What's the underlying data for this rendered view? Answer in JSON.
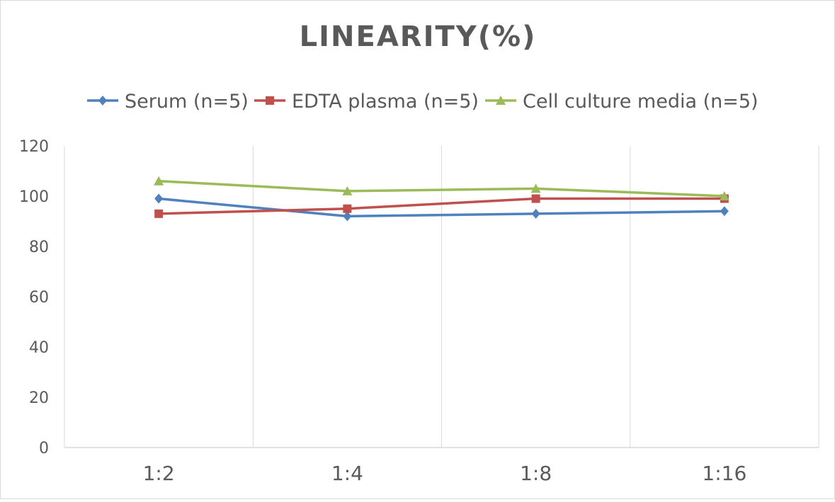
{
  "chart_data": {
    "type": "line",
    "title": "LINEARITY(%)",
    "categories": [
      "1:2",
      "1:4",
      "1:8",
      "1:16"
    ],
    "series": [
      {
        "name": "Serum (n=5)",
        "values": [
          99,
          92,
          93,
          94
        ],
        "color": "#4f81bd",
        "marker": "diamond"
      },
      {
        "name": "EDTA plasma (n=5)",
        "values": [
          93,
          95,
          99,
          99
        ],
        "color": "#c0504d",
        "marker": "square"
      },
      {
        "name": "Cell culture media (n=5)",
        "values": [
          106,
          102,
          103,
          100
        ],
        "color": "#9bbb59",
        "marker": "triangle"
      }
    ],
    "ylim": [
      0,
      120
    ],
    "yticks": [
      "0",
      "20",
      "40",
      "60",
      "80",
      "100",
      "120"
    ],
    "grid": "vertical",
    "legend": "top",
    "xlabel": "",
    "ylabel": ""
  }
}
